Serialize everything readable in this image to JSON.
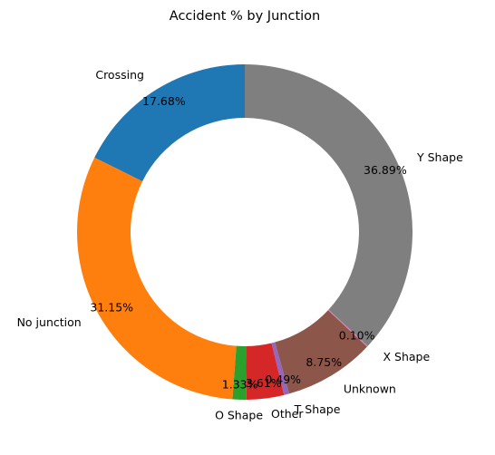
{
  "chart_data": {
    "type": "pie",
    "style": "donut",
    "title": "Accident % by Junction",
    "start_angle_deg": 90,
    "direction": "counterclockwise",
    "slices": [
      {
        "label": "Crossing",
        "value": 17.68,
        "pct_label": "17.68%",
        "color": "#1f77b4"
      },
      {
        "label": "No junction",
        "value": 31.15,
        "pct_label": "31.15%",
        "color": "#ff7f0e"
      },
      {
        "label": "O Shape",
        "value": 1.33,
        "pct_label": "1.33%",
        "color": "#2ca02c"
      },
      {
        "label": "Other",
        "value": 3.61,
        "pct_label": "3.61%",
        "color": "#d62728"
      },
      {
        "label": "T Shape",
        "value": 0.49,
        "pct_label": "0.49%",
        "color": "#9467bd"
      },
      {
        "label": "Unknown",
        "value": 8.75,
        "pct_label": "8.75%",
        "color": "#8c564b"
      },
      {
        "label": "X Shape",
        "value": 0.1,
        "pct_label": "0.10%",
        "color": "#e377c2"
      },
      {
        "label": "Y Shape",
        "value": 36.89,
        "pct_label": "36.89%",
        "color": "#7f7f7f"
      }
    ]
  }
}
